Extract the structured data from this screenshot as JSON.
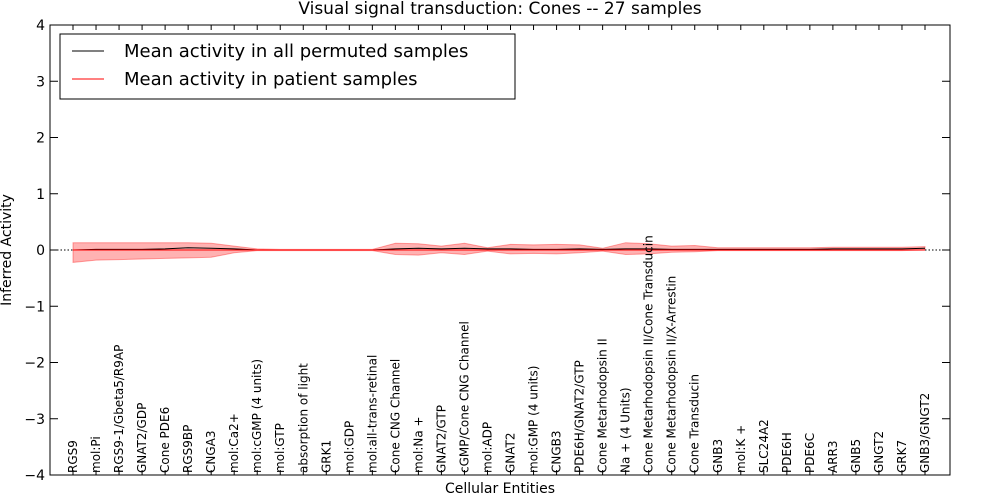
{
  "chart_data": {
    "type": "line",
    "title": "Visual signal transduction: Cones -- 27 samples",
    "xlabel": "Cellular Entities",
    "ylabel": "Inferred Activity",
    "ylim": [
      -4,
      4
    ],
    "yticks": [
      4,
      3,
      2,
      1,
      0,
      -1,
      -2,
      -3,
      -4
    ],
    "ytick_labels": [
      "4",
      "3",
      "2",
      "1",
      "0",
      "−1",
      "−2",
      "−3",
      "−4"
    ],
    "reference_line": 0,
    "categories": [
      "RGS9",
      "mol:Pi",
      "RGS9-1/Gbeta5/R9AP",
      "GNAT2/GDP",
      "Cone PDE6",
      "RGS9BP",
      "CNGA3",
      "mol:Ca2+",
      "mol:cGMP (4 units)",
      "mol:GTP",
      "absorption of light",
      "GRK1",
      "mol:GDP",
      "mol:all-trans-retinal",
      "Cone CNG Channel",
      "mol:Na +",
      "GNAT2/GTP",
      "cGMP/Cone CNG Channel",
      "mol:ADP",
      "GNAT2",
      "mol:GMP (4 units)",
      "CNGB3",
      "PDE6H/GNAT2/GTP",
      "Cone Metarhodopsin II",
      "Na + (4 Units)",
      "Cone Metarhodopsin II/Cone Transducin",
      "Cone Metarhodopsin II/X-Arrestin",
      "Cone Transducin",
      "GNB3",
      "mol:K +",
      "SLC24A2",
      "PDE6H",
      "PDE6C",
      "ARR3",
      "GNB5",
      "GNGT2",
      "GRK7",
      "GNB3/GNGT2"
    ],
    "series": [
      {
        "name": "Mean activity in all permuted samples",
        "color": "#000000",
        "values": [
          0.0,
          0.01,
          0.01,
          0.01,
          0.02,
          0.04,
          0.03,
          0.02,
          0.0,
          0.0,
          0.0,
          0.0,
          0.0,
          0.0,
          0.02,
          0.03,
          0.02,
          0.03,
          0.02,
          0.02,
          0.01,
          0.01,
          0.02,
          0.01,
          0.02,
          0.02,
          0.01,
          0.01,
          0.01,
          0.01,
          0.01,
          0.01,
          0.01,
          0.02,
          0.02,
          0.02,
          0.02,
          0.03
        ],
        "band_upper": [
          0.13,
          0.13,
          0.13,
          0.13,
          0.13,
          0.13,
          0.12,
          0.07,
          0.02,
          0.01,
          0.01,
          0.01,
          0.01,
          0.01,
          0.12,
          0.11,
          0.07,
          0.12,
          0.04,
          0.1,
          0.09,
          0.1,
          0.09,
          0.03,
          0.13,
          0.11,
          0.07,
          0.08,
          0.04,
          0.04,
          0.04,
          0.04,
          0.04,
          0.05,
          0.05,
          0.05,
          0.05,
          0.06
        ],
        "band_lower": [
          -0.22,
          -0.18,
          -0.17,
          -0.16,
          -0.15,
          -0.14,
          -0.13,
          -0.05,
          -0.01,
          -0.01,
          -0.01,
          -0.01,
          -0.01,
          -0.01,
          -0.08,
          -0.09,
          -0.05,
          -0.08,
          -0.02,
          -0.07,
          -0.06,
          -0.07,
          -0.05,
          -0.02,
          -0.08,
          -0.07,
          -0.04,
          -0.03,
          -0.01,
          -0.01,
          -0.01,
          -0.01,
          -0.01,
          -0.01,
          -0.01,
          -0.01,
          -0.01,
          0.0
        ]
      },
      {
        "name": "Mean activity in patient samples",
        "color": "#ff0000",
        "values": [
          0.0,
          0.0,
          0.0,
          0.0,
          0.0,
          0.0,
          0.0,
          0.0,
          0.0,
          0.0,
          0.0,
          0.0,
          0.0,
          0.0,
          0.0,
          0.0,
          0.0,
          0.0,
          0.0,
          0.0,
          0.0,
          0.0,
          0.0,
          0.0,
          0.0,
          0.0,
          0.0,
          0.0,
          0.0,
          0.0,
          0.0,
          0.0,
          0.0,
          0.0,
          0.0,
          0.0,
          0.0,
          0.0
        ]
      }
    ],
    "band_color": "#ff0000",
    "legend_position": "top-left",
    "grid": false
  }
}
